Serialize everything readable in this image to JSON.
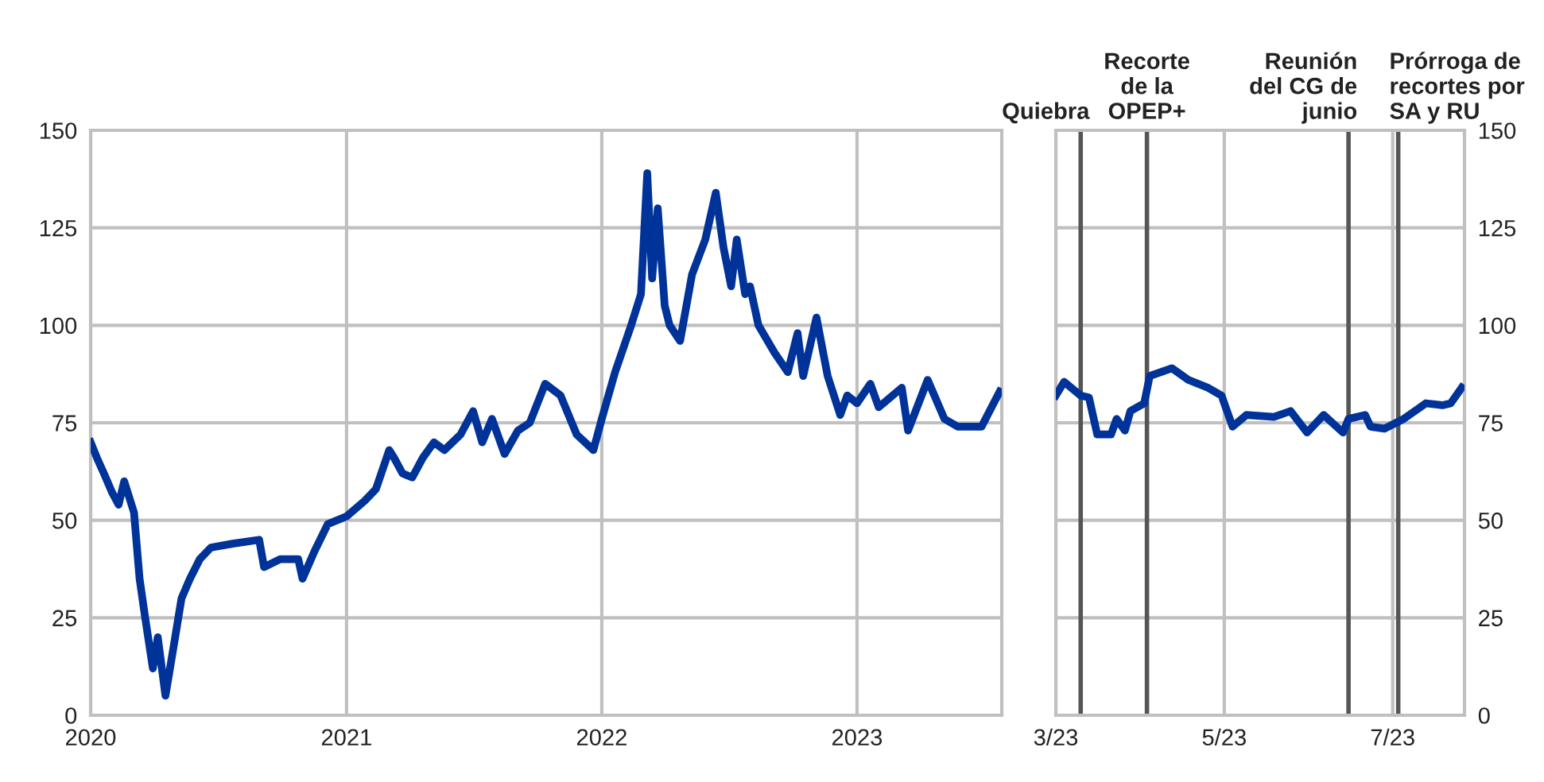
{
  "chart_data": [
    {
      "type": "line",
      "x": [
        "2020-01-01",
        "2020-01-10",
        "2020-01-20",
        "2020-02-01",
        "2020-02-10",
        "2020-02-18",
        "2020-03-03",
        "2020-03-11",
        "2020-03-19",
        "2020-03-30",
        "2020-04-06",
        "2020-04-17",
        "2020-04-29",
        "2020-05-10",
        "2020-05-22",
        "2020-06-05",
        "2020-06-21",
        "2020-07-22",
        "2020-08-29",
        "2020-09-05",
        "2020-09-28",
        "2020-10-24",
        "2020-10-30",
        "2020-11-16",
        "2020-12-05",
        "2021-01-01",
        "2021-01-27",
        "2021-02-12",
        "2021-03-03",
        "2021-03-10",
        "2021-03-22",
        "2021-04-05",
        "2021-04-20",
        "2021-05-06",
        "2021-05-21",
        "2021-06-13",
        "2021-07-01",
        "2021-07-14",
        "2021-07-28",
        "2021-08-15",
        "2021-09-03",
        "2021-09-20",
        "2021-10-12",
        "2021-11-03",
        "2021-11-26",
        "2021-12-20",
        "2022-01-01",
        "2022-01-20",
        "2022-02-12",
        "2022-02-26",
        "2022-03-07",
        "2022-03-14",
        "2022-03-22",
        "2022-04-01",
        "2022-04-08",
        "2022-04-23",
        "2022-05-10",
        "2022-05-29",
        "2022-06-13",
        "2022-06-24",
        "2022-07-05",
        "2022-07-13",
        "2022-07-25",
        "2022-08-01",
        "2022-08-13",
        "2022-09-05",
        "2022-09-24",
        "2022-10-08",
        "2022-10-16",
        "2022-11-04",
        "2022-11-20",
        "2022-12-08",
        "2022-12-18",
        "2023-01-01",
        "2023-01-20",
        "2023-02-01",
        "2023-03-06",
        "2023-03-15",
        "2023-04-12",
        "2023-05-06",
        "2023-05-25",
        "2023-06-28",
        "2023-07-24"
      ],
      "series": [
        {
          "color": "#003399",
          "values": [
            70,
            66,
            62,
            57,
            54,
            60,
            52,
            35,
            25,
            12,
            20,
            5,
            18,
            30,
            35,
            40,
            43,
            44,
            45,
            38,
            40,
            40,
            35,
            42,
            49,
            51,
            55,
            58,
            68,
            66,
            62,
            61,
            66,
            70,
            68,
            72,
            78,
            70,
            76,
            67,
            73,
            75,
            85,
            82,
            72,
            68,
            76,
            88,
            100,
            108,
            139,
            112,
            130,
            105,
            100,
            96,
            113,
            122,
            134,
            120,
            110,
            122,
            108,
            110,
            100,
            93,
            88,
            98,
            87,
            102,
            87,
            77,
            82,
            80,
            85,
            79,
            84,
            73,
            86,
            76,
            74,
            74,
            83
          ]
        }
      ],
      "xlim": [
        "2020-01-01",
        "2023-07-27"
      ],
      "xticks": [
        {
          "value": "2020-01-01",
          "label": "2020"
        },
        {
          "value": "2021-01-01",
          "label": "2021"
        },
        {
          "value": "2022-01-01",
          "label": "2022"
        },
        {
          "value": "2023-01-01",
          "label": "2023"
        }
      ],
      "ylim": [
        0,
        150
      ],
      "yticks": [
        0,
        25,
        50,
        75,
        100,
        125,
        150
      ],
      "grid": true,
      "marker": "none",
      "line_style": "solid"
    },
    {
      "type": "line",
      "x": [
        "2023-03-01",
        "2023-03-04",
        "2023-03-10",
        "2023-03-13",
        "2023-03-16",
        "2023-03-21",
        "2023-03-23",
        "2023-03-26",
        "2023-03-28",
        "2023-04-02",
        "2023-04-04",
        "2023-04-12",
        "2023-04-18",
        "2023-04-25",
        "2023-04-30",
        "2023-05-04",
        "2023-05-09",
        "2023-05-19",
        "2023-05-25",
        "2023-05-31",
        "2023-06-06",
        "2023-06-13",
        "2023-06-15",
        "2023-06-21",
        "2023-06-23",
        "2023-06-28",
        "2023-07-05",
        "2023-07-13",
        "2023-07-19",
        "2023-07-22",
        "2023-07-26"
      ],
      "series": [
        {
          "color": "#003399",
          "values": [
            82,
            85.5,
            82,
            81.5,
            72,
            72,
            76,
            73,
            78,
            80,
            87,
            89,
            86,
            84,
            82,
            74,
            77,
            76.5,
            78,
            72.5,
            77,
            72.5,
            76,
            77,
            74,
            73.5,
            76,
            80,
            79.5,
            80,
            84
          ]
        }
      ],
      "xlim": [
        "2023-03-01",
        "2023-07-27"
      ],
      "xticks": [
        {
          "value": "2023-03-01",
          "label": "3/23"
        },
        {
          "value": "2023-05-01",
          "label": "5/23"
        },
        {
          "value": "2023-07-01",
          "label": "7/23"
        }
      ],
      "ylim": [
        0,
        150
      ],
      "yticks": [
        0,
        25,
        50,
        75,
        100,
        125,
        150
      ],
      "grid": true,
      "marker": "none",
      "line_style": "solid",
      "ref_lines": [
        {
          "axis": "x",
          "value": "2023-03-10",
          "label": "Quiebra",
          "color": "#555555"
        },
        {
          "axis": "x",
          "value": "2023-04-03",
          "label": "Recorte\nde la\nOPEP+",
          "color": "#555555"
        },
        {
          "axis": "x",
          "value": "2023-06-15",
          "label": "Reunión\ndel CG de\njunio",
          "color": "#555555"
        },
        {
          "axis": "x",
          "value": "2023-07-03",
          "label": "Prórroga de\nrecortes por\nSA y RU",
          "color": "#555555"
        }
      ]
    }
  ]
}
